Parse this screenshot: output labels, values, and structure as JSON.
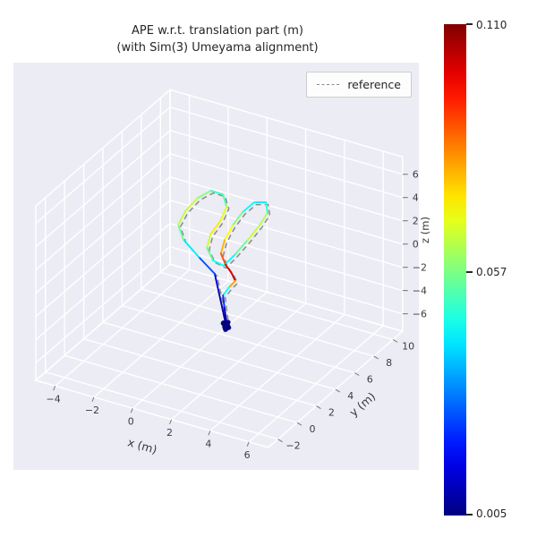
{
  "chart_data": {
    "type": "line",
    "subtype": "3d-trajectory",
    "title": "APE w.r.t. translation part (m)",
    "subtitle": "(with Sim(3) Umeyama alignment)",
    "legend": [
      {
        "label": "reference",
        "line_style": "dashed",
        "color": "#8a8a8a"
      }
    ],
    "axes": {
      "x": {
        "label": "x (m)",
        "range": [
          -5,
          7
        ],
        "ticks": [
          -4,
          -2,
          0,
          2,
          4,
          6
        ],
        "tick_labels": [
          "−4",
          "−2",
          "0",
          "2",
          "4",
          "6"
        ]
      },
      "y": {
        "label": "y (m)",
        "range": [
          -3,
          11
        ],
        "ticks": [
          -2,
          0,
          2,
          4,
          6,
          8,
          10
        ],
        "tick_labels": [
          "−2",
          "0",
          "2",
          "4",
          "6",
          "8",
          "10"
        ]
      },
      "z": {
        "label": "z (m)",
        "range": [
          -7.5,
          7.5
        ],
        "ticks": [
          -6,
          -4,
          -2,
          0,
          2,
          4,
          6
        ],
        "tick_labels": [
          "−6",
          "−4",
          "−2",
          "0",
          "2",
          "4",
          "6"
        ]
      }
    },
    "colorbar": {
      "colormap": "jet",
      "min": 0.005,
      "mid": 0.057,
      "max": 0.11,
      "tick_values": [
        0.11,
        0.057,
        0.005
      ],
      "tick_labels": [
        "0.110",
        "0.057",
        "0.005"
      ]
    },
    "series": [
      {
        "name": "ape-colored-trajectory",
        "note": "points estimated from plot",
        "points": [
          [
            1.8,
            3.13,
            -4.0
          ],
          [
            1.15,
            4.08,
            -3.6
          ],
          [
            0.36,
            5.2,
            -3.0
          ],
          [
            -0.11,
            5.78,
            -2.25
          ],
          [
            -1.09,
            6.09,
            -1.5
          ],
          [
            -2.06,
            6.46,
            -0.75
          ],
          [
            -2.55,
            6.9,
            0.0
          ],
          [
            -2.49,
            7.53,
            0.75
          ],
          [
            -2.21,
            8.26,
            1.5
          ],
          [
            -1.86,
            8.93,
            1.8
          ],
          [
            -1.39,
            9.22,
            1.5
          ],
          [
            -0.94,
            8.69,
            1.05
          ],
          [
            -0.85,
            7.85,
            0.45
          ],
          [
            -0.86,
            6.83,
            0.0
          ],
          [
            -0.63,
            6.02,
            -0.45
          ],
          [
            0.0,
            5.37,
            -0.75
          ],
          [
            0.74,
            5.01,
            -0.6
          ],
          [
            0.98,
            5.72,
            0.0
          ],
          [
            1.14,
            6.7,
            0.6
          ],
          [
            1.25,
            7.7,
            1.2
          ],
          [
            1.24,
            8.55,
            1.65
          ],
          [
            0.94,
            9.0,
            2.1
          ],
          [
            0.48,
            8.69,
            2.1
          ],
          [
            0.16,
            8.13,
            1.5
          ],
          [
            0.06,
            7.29,
            0.9
          ],
          [
            0.09,
            6.41,
            0.3
          ],
          [
            0.24,
            5.72,
            -0.3
          ],
          [
            0.69,
            5.3,
            -0.75
          ],
          [
            1.17,
            4.98,
            -1.05
          ],
          [
            1.47,
            4.73,
            -1.35
          ],
          [
            1.28,
            4.48,
            -1.8
          ],
          [
            1.1,
            4.2,
            -2.4
          ],
          [
            1.32,
            3.9,
            -3.15
          ],
          [
            1.65,
            3.45,
            -3.9
          ]
        ],
        "ape_values": [
          0.006,
          0.008,
          0.012,
          0.018,
          0.035,
          0.05,
          0.06,
          0.068,
          0.062,
          0.055,
          0.045,
          0.06,
          0.075,
          0.07,
          0.06,
          0.05,
          0.04,
          0.05,
          0.06,
          0.07,
          0.055,
          0.045,
          0.04,
          0.05,
          0.065,
          0.075,
          0.082,
          0.095,
          0.105,
          0.1,
          0.06,
          0.03,
          0.015,
          0.008
        ]
      },
      {
        "name": "reference",
        "style": "dashed-gray-underlay"
      }
    ],
    "colors": {
      "figure_bg": "#ffffff",
      "axes_bg": "#ececf4",
      "grid": "#ffffff",
      "reference": "#8a8a8a",
      "text": "#262626",
      "tick_text": "#3d3d3d"
    },
    "grid": true,
    "legend_position": "upper right"
  }
}
